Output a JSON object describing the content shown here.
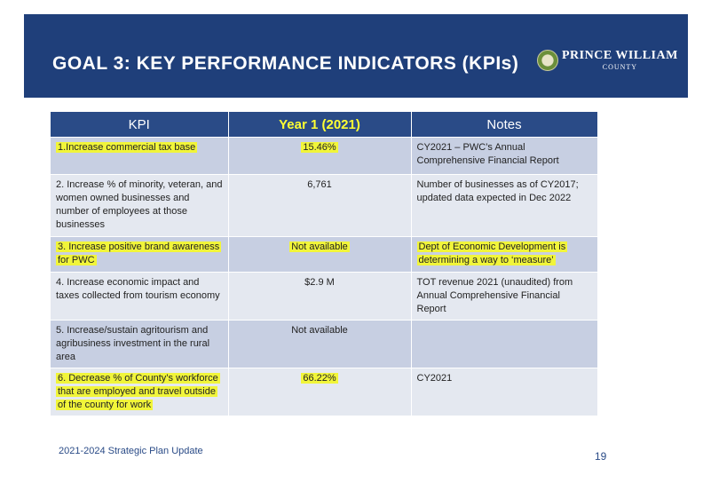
{
  "header": {
    "title": "GOAL 3: KEY PERFORMANCE INDICATORS (KPIs)",
    "logo_main": "PRINCE WILLIAM",
    "logo_sub": "COUNTY"
  },
  "table": {
    "headers": [
      "KPI",
      "Year 1 (2021)",
      "Notes"
    ],
    "rows": [
      {
        "kpi": "1.Increase commercial tax base",
        "year": "15.46%",
        "notes": "CY2021 – PWC’s Annual Comprehensive Financial Report"
      },
      {
        "kpi": "2. Increase % of minority, veteran, and women owned businesses and number of employees at those businesses",
        "year": "6,761",
        "notes": "Number of businesses as of CY2017; updated data expected in Dec 2022"
      },
      {
        "kpi": "3. Increase positive brand awareness for PWC",
        "year": "Not available",
        "notes": "Dept of Economic Development is determining a way to ‘measure’"
      },
      {
        "kpi": "4. Increase economic impact and taxes collected from tourism economy",
        "year": "$2.9 M",
        "notes": "TOT revenue 2021 (unaudited) from Annual Comprehensive Financial Report"
      },
      {
        "kpi": "5. Increase/sustain agritourism and agribusiness investment in the rural area",
        "year": "Not available",
        "notes": ""
      },
      {
        "kpi": "6. Decrease % of County’s workforce that are employed and travel outside of the county for work",
        "year": "66.22%",
        "notes": "CY2021"
      }
    ]
  },
  "footer": {
    "text": "2021-2024 Strategic Plan Update",
    "page_number": "19"
  },
  "colors": {
    "banner": "#1f3f7a",
    "table_header": "#2a4b87",
    "highlight": "#f1f53a",
    "year_header_text": "#ffff33"
  }
}
